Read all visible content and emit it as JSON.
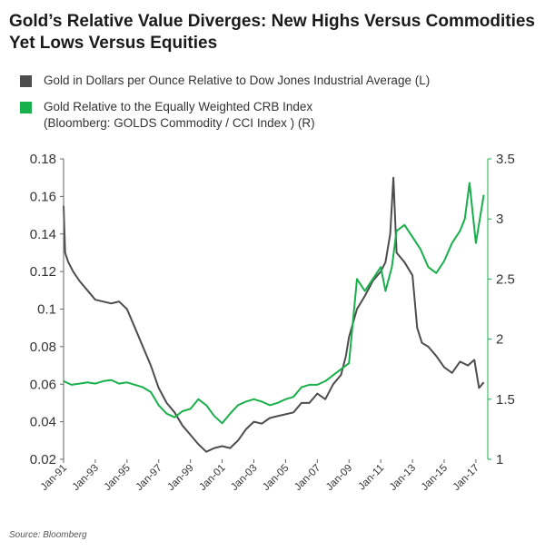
{
  "title_lines": [
    "Gold’s Relative Value Diverges: New Highs Versus Commodities",
    "Yet Lows Versus Equities"
  ],
  "source": "Source: Bloomberg",
  "colors": {
    "gold_dow": "#4d4d4d",
    "gold_crb": "#18b04a"
  },
  "chart_data": {
    "type": "line",
    "x_tick_labels": [
      "Jan-91",
      "Jan-93",
      "Jan-95",
      "Jan-97",
      "Jan-99",
      "Jan-01",
      "Jan-03",
      "Jan-05",
      "Jan-07",
      "Jan-09",
      "Jan-11",
      "Jan-13",
      "Jan-15",
      "Jan-17"
    ],
    "x_range": [
      1991.0,
      2017.75
    ],
    "y_left": {
      "ticks": [
        "0.02",
        "0.04",
        "0.06",
        "0.08",
        "0.1",
        "0.12",
        "0.14",
        "0.16",
        "0.18"
      ],
      "range": [
        0.02,
        0.18
      ]
    },
    "y_right": {
      "ticks": [
        "1",
        "1.5",
        "2",
        "2.5",
        "3",
        "3.5"
      ],
      "range": [
        1.0,
        3.5
      ]
    },
    "grid": false,
    "legend_position": "top",
    "series": [
      {
        "name": "Gold in Dollars per Ounce Relative to Dow Jones Industrial Average (L)",
        "axis": "left",
        "x": [
          1991.0,
          1991.1,
          1991.3,
          1991.6,
          1992.0,
          1992.5,
          1993.0,
          1993.5,
          1994.0,
          1994.5,
          1995.0,
          1995.5,
          1996.0,
          1996.5,
          1997.0,
          1997.5,
          1998.0,
          1998.5,
          1999.0,
          1999.5,
          2000.0,
          2000.5,
          2001.0,
          2001.5,
          2002.0,
          2002.5,
          2003.0,
          2003.5,
          2004.0,
          2004.5,
          2005.0,
          2005.5,
          2006.0,
          2006.5,
          2007.0,
          2007.5,
          2008.0,
          2008.5,
          2008.8,
          2009.0,
          2009.5,
          2010.0,
          2010.5,
          2011.0,
          2011.3,
          2011.6,
          2011.8,
          2012.0,
          2012.5,
          2013.0,
          2013.3,
          2013.6,
          2014.0,
          2014.5,
          2015.0,
          2015.5,
          2016.0,
          2016.5,
          2016.9,
          2017.2,
          2017.5
        ],
        "y": [
          0.155,
          0.13,
          0.125,
          0.12,
          0.115,
          0.11,
          0.105,
          0.104,
          0.103,
          0.104,
          0.1,
          0.09,
          0.08,
          0.07,
          0.058,
          0.05,
          0.045,
          0.038,
          0.033,
          0.028,
          0.024,
          0.026,
          0.027,
          0.026,
          0.03,
          0.036,
          0.04,
          0.039,
          0.042,
          0.043,
          0.044,
          0.045,
          0.05,
          0.05,
          0.055,
          0.052,
          0.06,
          0.065,
          0.075,
          0.085,
          0.1,
          0.107,
          0.115,
          0.12,
          0.125,
          0.14,
          0.17,
          0.13,
          0.125,
          0.118,
          0.09,
          0.082,
          0.08,
          0.075,
          0.069,
          0.066,
          0.072,
          0.07,
          0.073,
          0.058,
          0.061
        ]
      },
      {
        "name": "Gold Relative to the Equally Weighted CRB Index (Bloomberg: GOLDS Commodity / CCI Index ) (R)",
        "axis": "right",
        "x": [
          1991.0,
          1991.5,
          1992.0,
          1992.5,
          1993.0,
          1993.5,
          1994.0,
          1994.5,
          1995.0,
          1995.5,
          1996.0,
          1996.5,
          1997.0,
          1997.5,
          1998.0,
          1998.5,
          1999.0,
          1999.5,
          2000.0,
          2000.5,
          2001.0,
          2001.5,
          2002.0,
          2002.5,
          2003.0,
          2003.5,
          2004.0,
          2004.5,
          2005.0,
          2005.5,
          2006.0,
          2006.5,
          2007.0,
          2007.5,
          2008.0,
          2008.5,
          2009.0,
          2009.5,
          2010.0,
          2010.5,
          2011.0,
          2011.3,
          2011.7,
          2012.0,
          2012.5,
          2013.0,
          2013.5,
          2014.0,
          2014.5,
          2015.0,
          2015.5,
          2016.0,
          2016.3,
          2016.6,
          2017.0,
          2017.5
        ],
        "y": [
          1.65,
          1.62,
          1.63,
          1.64,
          1.63,
          1.65,
          1.66,
          1.63,
          1.64,
          1.62,
          1.6,
          1.56,
          1.45,
          1.38,
          1.35,
          1.4,
          1.42,
          1.5,
          1.45,
          1.36,
          1.3,
          1.38,
          1.45,
          1.48,
          1.5,
          1.48,
          1.45,
          1.47,
          1.5,
          1.52,
          1.6,
          1.62,
          1.62,
          1.65,
          1.7,
          1.75,
          1.8,
          2.5,
          2.4,
          2.5,
          2.6,
          2.4,
          2.6,
          2.9,
          2.95,
          2.85,
          2.75,
          2.6,
          2.55,
          2.65,
          2.8,
          2.9,
          3.0,
          3.3,
          2.8,
          3.2
        ]
      }
    ]
  }
}
